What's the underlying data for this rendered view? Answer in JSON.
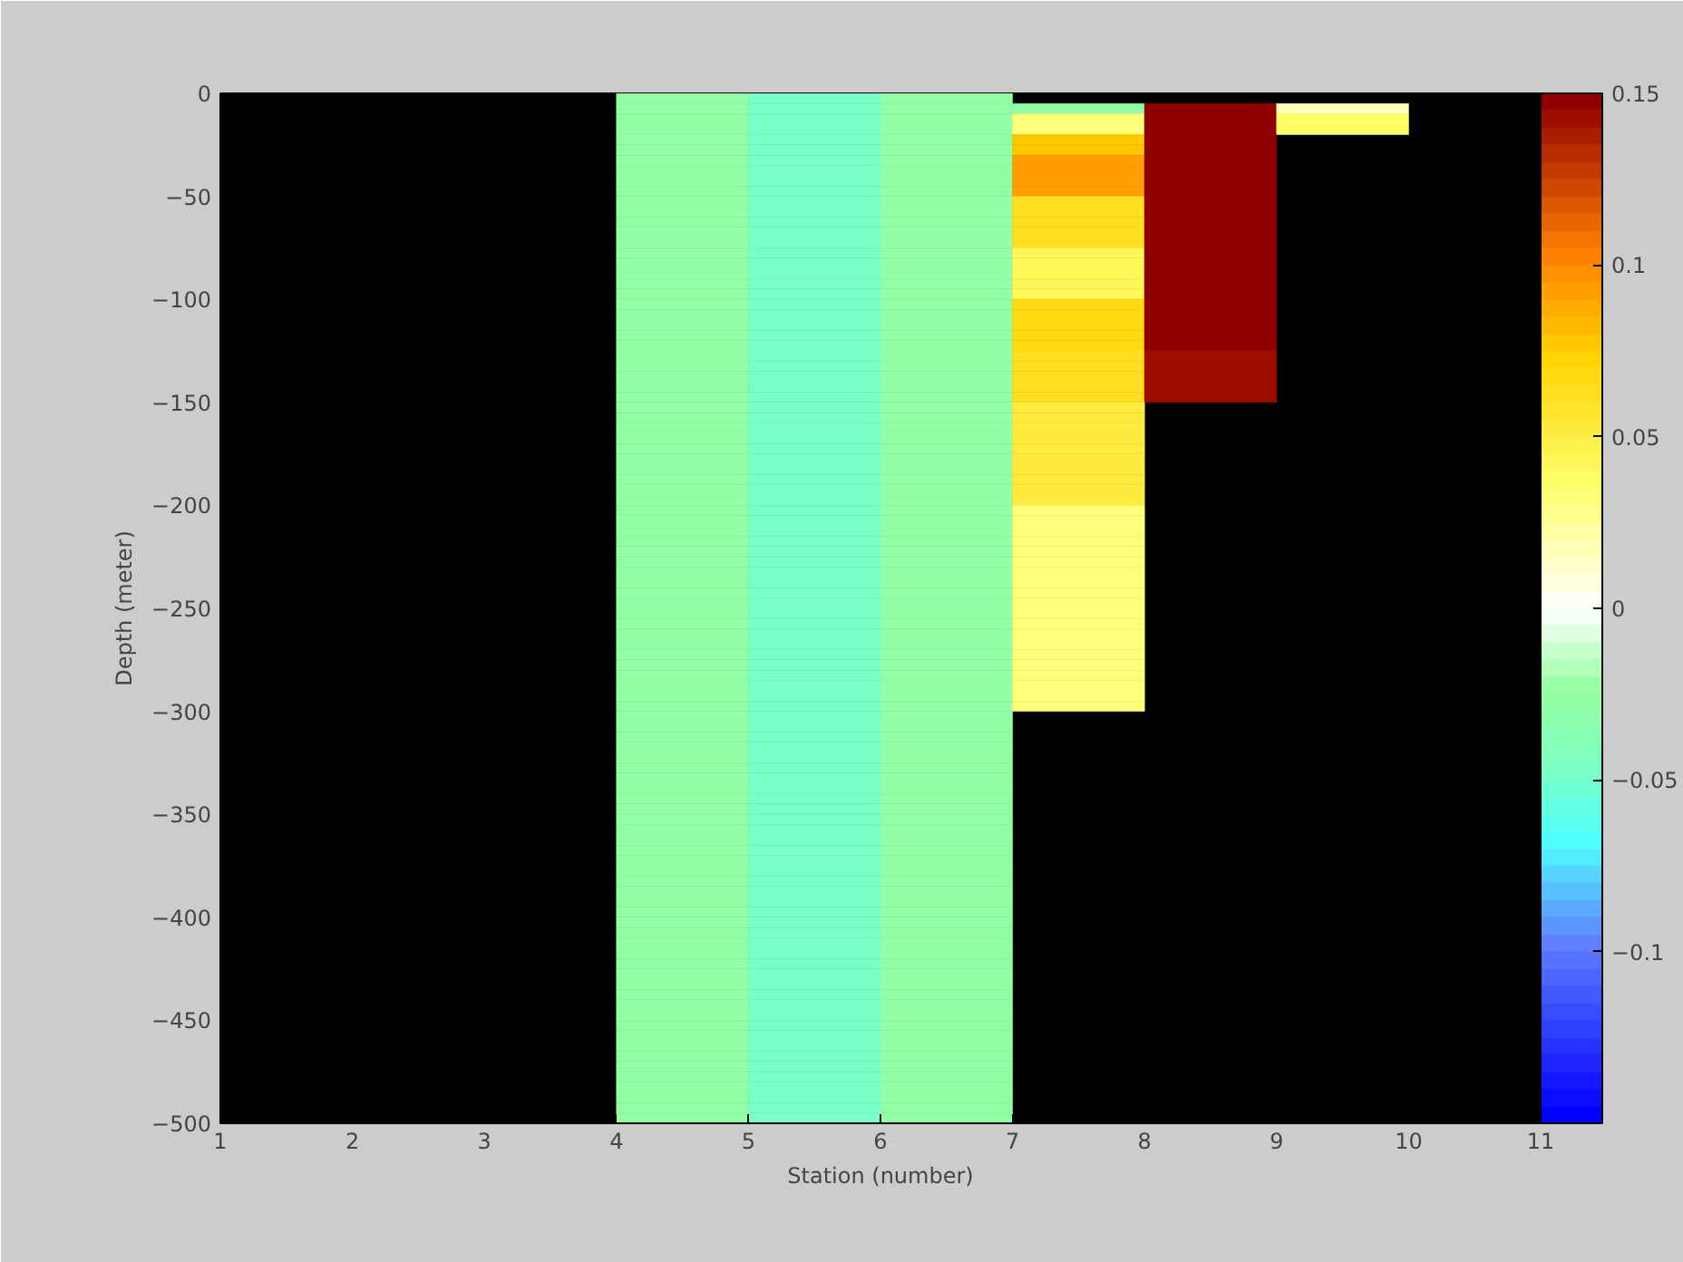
{
  "chart_data": {
    "type": "heatmap",
    "xlabel": "Station (number)",
    "ylabel": "Depth (meter)",
    "cells": [
      [
        null,
        null,
        null,
        -0.03,
        -0.05,
        -0.03,
        null,
        null,
        null,
        null
      ],
      [
        null,
        null,
        null,
        -0.03,
        -0.05,
        -0.03,
        -0.03,
        0.15,
        0.015,
        null
      ],
      [
        null,
        null,
        null,
        -0.03,
        -0.05,
        -0.03,
        0.03,
        0.15,
        0.035,
        null
      ],
      [
        null,
        null,
        null,
        -0.03,
        -0.05,
        -0.03,
        0.03,
        0.15,
        0.035,
        null
      ],
      [
        null,
        null,
        null,
        -0.03,
        -0.05,
        -0.03,
        0.075,
        0.15,
        null,
        null
      ],
      [
        null,
        null,
        null,
        -0.03,
        -0.05,
        -0.03,
        0.075,
        0.15,
        null,
        null
      ],
      [
        null,
        null,
        null,
        -0.03,
        -0.05,
        -0.03,
        0.09,
        0.15,
        null,
        null
      ],
      [
        null,
        null,
        null,
        -0.03,
        -0.05,
        -0.03,
        0.09,
        0.15,
        null,
        null
      ],
      [
        null,
        null,
        null,
        -0.03,
        -0.05,
        -0.03,
        0.09,
        0.15,
        null,
        null
      ],
      [
        null,
        null,
        null,
        -0.03,
        -0.05,
        -0.03,
        0.09,
        0.15,
        null,
        null
      ],
      [
        null,
        null,
        null,
        -0.03,
        -0.05,
        -0.03,
        0.06,
        0.15,
        null,
        null
      ],
      [
        null,
        null,
        null,
        -0.03,
        -0.05,
        -0.03,
        0.06,
        0.15,
        null,
        null
      ],
      [
        null,
        null,
        null,
        -0.03,
        -0.05,
        -0.03,
        0.06,
        0.15,
        null,
        null
      ],
      [
        null,
        null,
        null,
        -0.03,
        -0.05,
        -0.03,
        0.06,
        0.15,
        null,
        null
      ],
      [
        null,
        null,
        null,
        -0.03,
        -0.05,
        -0.03,
        0.06,
        0.15,
        null,
        null
      ],
      [
        null,
        null,
        null,
        -0.03,
        -0.05,
        -0.03,
        0.04,
        0.15,
        null,
        null
      ],
      [
        null,
        null,
        null,
        -0.03,
        -0.05,
        -0.03,
        0.04,
        0.15,
        null,
        null
      ],
      [
        null,
        null,
        null,
        -0.03,
        -0.05,
        -0.03,
        0.04,
        0.15,
        null,
        null
      ],
      [
        null,
        null,
        null,
        -0.03,
        -0.05,
        -0.03,
        0.04,
        0.15,
        null,
        null
      ],
      [
        null,
        null,
        null,
        -0.03,
        -0.05,
        -0.03,
        0.04,
        0.15,
        null,
        null
      ],
      [
        null,
        null,
        null,
        -0.03,
        -0.05,
        -0.03,
        0.065,
        0.15,
        null,
        null
      ],
      [
        null,
        null,
        null,
        -0.03,
        -0.05,
        -0.03,
        0.065,
        0.15,
        null,
        null
      ],
      [
        null,
        null,
        null,
        -0.03,
        -0.05,
        -0.03,
        0.065,
        0.15,
        null,
        null
      ],
      [
        null,
        null,
        null,
        -0.03,
        -0.05,
        -0.03,
        0.065,
        0.15,
        null,
        null
      ],
      [
        null,
        null,
        null,
        -0.03,
        -0.05,
        -0.03,
        0.065,
        0.15,
        null,
        null
      ],
      [
        null,
        null,
        null,
        -0.03,
        -0.05,
        -0.03,
        0.06,
        0.14,
        null,
        null
      ],
      [
        null,
        null,
        null,
        -0.03,
        -0.05,
        -0.03,
        0.06,
        0.14,
        null,
        null
      ],
      [
        null,
        null,
        null,
        -0.03,
        -0.05,
        -0.03,
        0.06,
        0.14,
        null,
        null
      ],
      [
        null,
        null,
        null,
        -0.03,
        -0.05,
        -0.03,
        0.06,
        0.14,
        null,
        null
      ],
      [
        null,
        null,
        null,
        -0.03,
        -0.05,
        -0.03,
        0.06,
        0.14,
        null,
        null
      ],
      [
        null,
        null,
        null,
        -0.03,
        -0.05,
        -0.03,
        0.05,
        null,
        null,
        null
      ],
      [
        null,
        null,
        null,
        -0.03,
        -0.05,
        -0.03,
        0.05,
        null,
        null,
        null
      ],
      [
        null,
        null,
        null,
        -0.03,
        -0.05,
        -0.03,
        0.05,
        null,
        null,
        null
      ],
      [
        null,
        null,
        null,
        -0.03,
        -0.05,
        -0.03,
        0.05,
        null,
        null,
        null
      ],
      [
        null,
        null,
        null,
        -0.03,
        -0.05,
        -0.03,
        0.05,
        null,
        null,
        null
      ],
      [
        null,
        null,
        null,
        -0.03,
        -0.05,
        -0.03,
        0.05,
        null,
        null,
        null
      ],
      [
        null,
        null,
        null,
        -0.03,
        -0.05,
        -0.03,
        0.05,
        null,
        null,
        null
      ],
      [
        null,
        null,
        null,
        -0.03,
        -0.05,
        -0.03,
        0.05,
        null,
        null,
        null
      ],
      [
        null,
        null,
        null,
        -0.03,
        -0.05,
        -0.03,
        0.05,
        null,
        null,
        null
      ],
      [
        null,
        null,
        null,
        -0.03,
        -0.05,
        -0.03,
        0.05,
        null,
        null,
        null
      ],
      [
        null,
        null,
        null,
        -0.03,
        -0.05,
        -0.03,
        0.03,
        null,
        null,
        null
      ],
      [
        null,
        null,
        null,
        -0.03,
        -0.05,
        -0.03,
        0.03,
        null,
        null,
        null
      ],
      [
        null,
        null,
        null,
        -0.03,
        -0.05,
        -0.03,
        0.03,
        null,
        null,
        null
      ],
      [
        null,
        null,
        null,
        -0.03,
        -0.05,
        -0.03,
        0.03,
        null,
        null,
        null
      ],
      [
        null,
        null,
        null,
        -0.03,
        -0.05,
        -0.03,
        0.03,
        null,
        null,
        null
      ],
      [
        null,
        null,
        null,
        -0.03,
        -0.05,
        -0.03,
        0.03,
        null,
        null,
        null
      ],
      [
        null,
        null,
        null,
        -0.03,
        -0.05,
        -0.03,
        0.03,
        null,
        null,
        null
      ],
      [
        null,
        null,
        null,
        -0.03,
        -0.05,
        -0.03,
        0.03,
        null,
        null,
        null
      ],
      [
        null,
        null,
        null,
        -0.03,
        -0.05,
        -0.03,
        0.03,
        null,
        null,
        null
      ],
      [
        null,
        null,
        null,
        -0.03,
        -0.05,
        -0.03,
        0.03,
        null,
        null,
        null
      ],
      [
        null,
        null,
        null,
        -0.03,
        -0.05,
        -0.03,
        0.03,
        null,
        null,
        null
      ],
      [
        null,
        null,
        null,
        -0.03,
        -0.05,
        -0.03,
        0.03,
        null,
        null,
        null
      ],
      [
        null,
        null,
        null,
        -0.03,
        -0.05,
        -0.03,
        0.03,
        null,
        null,
        null
      ],
      [
        null,
        null,
        null,
        -0.03,
        -0.05,
        -0.03,
        0.03,
        null,
        null,
        null
      ],
      [
        null,
        null,
        null,
        -0.03,
        -0.05,
        -0.03,
        0.03,
        null,
        null,
        null
      ],
      [
        null,
        null,
        null,
        -0.03,
        -0.05,
        -0.03,
        0.03,
        null,
        null,
        null
      ],
      [
        null,
        null,
        null,
        -0.03,
        -0.05,
        -0.03,
        0.03,
        null,
        null,
        null
      ],
      [
        null,
        null,
        null,
        -0.03,
        -0.05,
        -0.03,
        0.03,
        null,
        null,
        null
      ],
      [
        null,
        null,
        null,
        -0.03,
        -0.05,
        -0.03,
        0.03,
        null,
        null,
        null
      ],
      [
        null,
        null,
        null,
        -0.03,
        -0.05,
        -0.03,
        0.03,
        null,
        null,
        null
      ],
      [
        null,
        null,
        null,
        -0.03,
        -0.05,
        -0.03,
        null,
        null,
        null,
        null
      ],
      [
        null,
        null,
        null,
        -0.03,
        -0.05,
        -0.03,
        null,
        null,
        null,
        null
      ],
      [
        null,
        null,
        null,
        -0.03,
        -0.05,
        -0.03,
        null,
        null,
        null,
        null
      ],
      [
        null,
        null,
        null,
        -0.03,
        -0.05,
        -0.03,
        null,
        null,
        null,
        null
      ],
      [
        null,
        null,
        null,
        -0.03,
        -0.05,
        -0.03,
        null,
        null,
        null,
        null
      ],
      [
        null,
        null,
        null,
        -0.03,
        -0.05,
        -0.03,
        null,
        null,
        null,
        null
      ],
      [
        null,
        null,
        null,
        -0.03,
        -0.05,
        -0.03,
        null,
        null,
        null,
        null
      ],
      [
        null,
        null,
        null,
        -0.03,
        -0.05,
        -0.03,
        null,
        null,
        null,
        null
      ],
      [
        null,
        null,
        null,
        -0.03,
        -0.05,
        -0.03,
        null,
        null,
        null,
        null
      ],
      [
        null,
        null,
        null,
        -0.03,
        -0.05,
        -0.03,
        null,
        null,
        null,
        null
      ],
      [
        null,
        null,
        null,
        -0.03,
        -0.05,
        -0.03,
        null,
        null,
        null,
        null
      ],
      [
        null,
        null,
        null,
        -0.03,
        -0.05,
        -0.03,
        null,
        null,
        null,
        null
      ],
      [
        null,
        null,
        null,
        -0.03,
        -0.05,
        -0.03,
        null,
        null,
        null,
        null
      ],
      [
        null,
        null,
        null,
        -0.03,
        -0.05,
        -0.03,
        null,
        null,
        null,
        null
      ],
      [
        null,
        null,
        null,
        -0.03,
        -0.05,
        -0.03,
        null,
        null,
        null,
        null
      ],
      [
        null,
        null,
        null,
        -0.03,
        -0.05,
        -0.03,
        null,
        null,
        null,
        null
      ],
      [
        null,
        null,
        null,
        -0.03,
        -0.05,
        -0.03,
        null,
        null,
        null,
        null
      ],
      [
        null,
        null,
        null,
        -0.03,
        -0.05,
        -0.03,
        null,
        null,
        null,
        null
      ],
      [
        null,
        null,
        null,
        -0.03,
        -0.05,
        -0.03,
        null,
        null,
        null,
        null
      ],
      [
        null,
        null,
        null,
        -0.03,
        -0.05,
        -0.03,
        null,
        null,
        null,
        null
      ],
      [
        null,
        null,
        null,
        -0.03,
        -0.05,
        -0.03,
        null,
        null,
        null,
        null
      ],
      [
        null,
        null,
        null,
        -0.03,
        -0.05,
        -0.03,
        null,
        null,
        null,
        null
      ],
      [
        null,
        null,
        null,
        -0.03,
        -0.05,
        -0.03,
        null,
        null,
        null,
        null
      ],
      [
        null,
        null,
        null,
        -0.03,
        -0.05,
        -0.03,
        null,
        null,
        null,
        null
      ],
      [
        null,
        null,
        null,
        -0.03,
        -0.05,
        -0.03,
        null,
        null,
        null,
        null
      ],
      [
        null,
        null,
        null,
        -0.03,
        -0.05,
        -0.03,
        null,
        null,
        null,
        null
      ],
      [
        null,
        null,
        null,
        -0.03,
        -0.05,
        -0.03,
        null,
        null,
        null,
        null
      ],
      [
        null,
        null,
        null,
        -0.03,
        -0.05,
        -0.03,
        null,
        null,
        null,
        null
      ],
      [
        null,
        null,
        null,
        -0.03,
        -0.05,
        -0.03,
        null,
        null,
        null,
        null
      ],
      [
        null,
        null,
        null,
        -0.03,
        -0.05,
        -0.03,
        null,
        null,
        null,
        null
      ],
      [
        null,
        null,
        null,
        -0.03,
        -0.05,
        -0.03,
        null,
        null,
        null,
        null
      ],
      [
        null,
        null,
        null,
        -0.03,
        -0.05,
        -0.03,
        null,
        null,
        null,
        null
      ],
      [
        null,
        null,
        null,
        -0.03,
        -0.05,
        -0.03,
        null,
        null,
        null,
        null
      ],
      [
        null,
        null,
        null,
        -0.03,
        -0.05,
        -0.03,
        null,
        null,
        null,
        null
      ],
      [
        null,
        null,
        null,
        -0.03,
        -0.05,
        -0.03,
        null,
        null,
        null,
        null
      ],
      [
        null,
        null,
        null,
        -0.03,
        -0.05,
        -0.03,
        null,
        null,
        null,
        null
      ],
      [
        null,
        null,
        null,
        -0.03,
        -0.05,
        -0.03,
        null,
        null,
        null,
        null
      ],
      [
        null,
        null,
        null,
        -0.03,
        -0.05,
        -0.03,
        null,
        null,
        null,
        null
      ],
      [
        null,
        null,
        null,
        -0.03,
        -0.05,
        -0.03,
        null,
        null,
        null,
        null
      ],
      [
        null,
        null,
        null,
        -0.03,
        -0.05,
        -0.03,
        null,
        null,
        null,
        null
      ]
    ],
    "xlim": [
      1,
      11
    ],
    "ylim": [
      -500,
      0
    ],
    "xticks": [
      1,
      2,
      3,
      4,
      5,
      6,
      7,
      8,
      9,
      10,
      11
    ],
    "yticks": [
      0,
      -50,
      -100,
      -150,
      -200,
      -250,
      -300,
      -350,
      -400,
      -450,
      -500
    ],
    "clim": [
      -0.15,
      0.15
    ],
    "cticks": [
      -0.1,
      -0.05,
      0,
      0.05,
      0.1,
      0.15
    ],
    "grid": false
  }
}
